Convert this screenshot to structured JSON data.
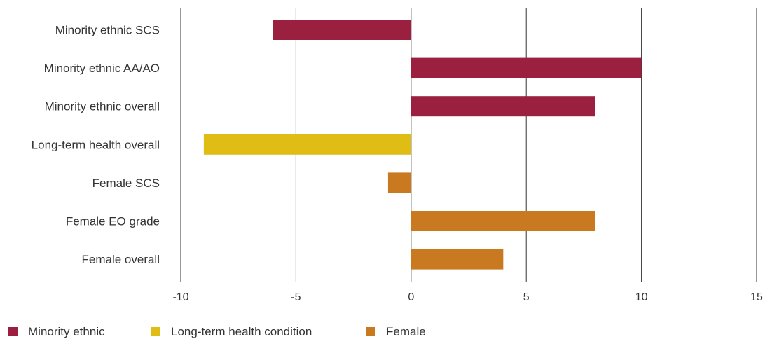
{
  "chart_data": {
    "type": "bar",
    "orientation": "horizontal",
    "categories": [
      "Minority ethnic SCS",
      "Minority ethnic AA/AO",
      "Minority ethnic overall",
      "Long-term health overall",
      "Female SCS",
      "Female EO grade",
      "Female overall"
    ],
    "values": [
      -6,
      10,
      8,
      -9,
      -1,
      8,
      4
    ],
    "bar_group": [
      "Minority ethnic",
      "Minority ethnic",
      "Minority ethnic",
      "Long-term health condition",
      "Female",
      "Female",
      "Female"
    ],
    "xlim": [
      -10,
      15
    ],
    "xticks": [
      "-10",
      "-5",
      "0",
      "5",
      "10",
      "15"
    ],
    "grid": "vertical",
    "legend_position": "bottom-left",
    "legend": [
      {
        "name": "Minority ethnic",
        "color": "#9b2040"
      },
      {
        "name": "Long-term health condition",
        "color": "#e0bd14"
      },
      {
        "name": "Female",
        "color": "#c97a20"
      }
    ],
    "title": "",
    "xlabel": "",
    "ylabel": ""
  }
}
